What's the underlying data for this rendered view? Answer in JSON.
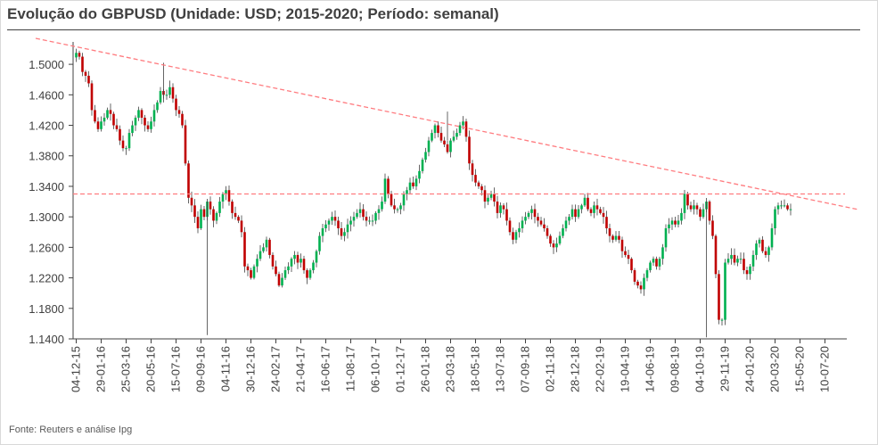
{
  "title": "Evolução do GBPUSD (Unidade: USD; 2015-2020; Período: semanal)",
  "source": "Fonte: Reuters e análise Ipg",
  "colors": {
    "up": "#00b050",
    "down": "#c00000",
    "trend": "#ff7c80",
    "axis": "#404040"
  },
  "chart_data": {
    "type": "candlestick",
    "title": "Evolução do GBPUSD (Unidade: USD; 2015-2020; Período: semanal)",
    "ylim": [
      1.14,
      1.52
    ],
    "y_ticks": [
      "1.1400",
      "1.1800",
      "1.2200",
      "1.2600",
      "1.3000",
      "1.3400",
      "1.3800",
      "1.4200",
      "1.4600",
      "1.5000"
    ],
    "x_tick_labels": [
      "04-12-15",
      "29-01-16",
      "25-03-16",
      "20-05-16",
      "15-07-16",
      "09-09-16",
      "04-11-16",
      "30-12-16",
      "24-02-17",
      "21-04-17",
      "16-06-17",
      "11-08-17",
      "06-10-17",
      "01-12-17",
      "26-01-18",
      "23-03-18",
      "18-05-18",
      "13-07-18",
      "07-09-18",
      "02-11-18",
      "28-12-18",
      "22-02-19",
      "19-04-19",
      "14-06-19",
      "09-08-19",
      "04-10-19",
      "29-11-19",
      "24-01-20",
      "20-03-20",
      "15-05-20",
      "10-07-20"
    ],
    "weeks_between_ticks": 8,
    "horizontal_level": 1.33,
    "trendline": {
      "from": [
        "04-12-15",
        1.517
      ],
      "to": [
        "10-07-20",
        1.325
      ]
    },
    "series": [
      {
        "closes": [
          1.515,
          1.51,
          1.49,
          1.485,
          1.475,
          1.44,
          1.425,
          1.415,
          1.425,
          1.43,
          1.44,
          1.435,
          1.42,
          1.415,
          1.4,
          1.39,
          1.39,
          1.41,
          1.42,
          1.43,
          1.44,
          1.43,
          1.42,
          1.415,
          1.425,
          1.44,
          1.45,
          1.465,
          1.46,
          1.46,
          1.47,
          1.455,
          1.44,
          1.435,
          1.42,
          1.37,
          1.325,
          1.315,
          1.3,
          1.285,
          1.31,
          1.3,
          1.32,
          1.31,
          1.295,
          1.305,
          1.32,
          1.33,
          1.335,
          1.32,
          1.305,
          1.3,
          1.295,
          1.28,
          1.235,
          1.23,
          1.22,
          1.235,
          1.245,
          1.255,
          1.26,
          1.27,
          1.25,
          1.235,
          1.225,
          1.21,
          1.22,
          1.23,
          1.235,
          1.245,
          1.25,
          1.24,
          1.245,
          1.23,
          1.22,
          1.23,
          1.24,
          1.255,
          1.275,
          1.285,
          1.29,
          1.295,
          1.3,
          1.295,
          1.285,
          1.275,
          1.28,
          1.29,
          1.295,
          1.3,
          1.305,
          1.31,
          1.3,
          1.295,
          1.295,
          1.295,
          1.305,
          1.31,
          1.32,
          1.35,
          1.33,
          1.315,
          1.31,
          1.31,
          1.315,
          1.33,
          1.335,
          1.345,
          1.34,
          1.35,
          1.36,
          1.375,
          1.385,
          1.4,
          1.41,
          1.42,
          1.41,
          1.4,
          1.395,
          1.385,
          1.4,
          1.405,
          1.41,
          1.42,
          1.425,
          1.405,
          1.37,
          1.355,
          1.345,
          1.34,
          1.335,
          1.32,
          1.325,
          1.33,
          1.32,
          1.305,
          1.315,
          1.31,
          1.295,
          1.28,
          1.27,
          1.28,
          1.285,
          1.295,
          1.3,
          1.305,
          1.31,
          1.3,
          1.295,
          1.29,
          1.285,
          1.275,
          1.265,
          1.26,
          1.265,
          1.275,
          1.285,
          1.295,
          1.3,
          1.31,
          1.3,
          1.31,
          1.315,
          1.325,
          1.31,
          1.305,
          1.315,
          1.31,
          1.305,
          1.3,
          1.285,
          1.275,
          1.27,
          1.275,
          1.27,
          1.255,
          1.25,
          1.245,
          1.23,
          1.215,
          1.21,
          1.205,
          1.22,
          1.23,
          1.24,
          1.245,
          1.235,
          1.245,
          1.26,
          1.285,
          1.29,
          1.295,
          1.29,
          1.295,
          1.305,
          1.33,
          1.315,
          1.31,
          1.315,
          1.31,
          1.3,
          1.31,
          1.32,
          1.295,
          1.275,
          1.225,
          1.165,
          1.165,
          1.24,
          1.245,
          1.25,
          1.24,
          1.245,
          1.245,
          1.23,
          1.225,
          1.235,
          1.25,
          1.265,
          1.27,
          1.255,
          1.25,
          1.26,
          1.285,
          1.31,
          1.315,
          1.315,
          1.315,
          1.31,
          1.31
        ]
      }
    ],
    "points_description": "Weekly closes read from the candlestick bodies; wicks are approximate."
  }
}
